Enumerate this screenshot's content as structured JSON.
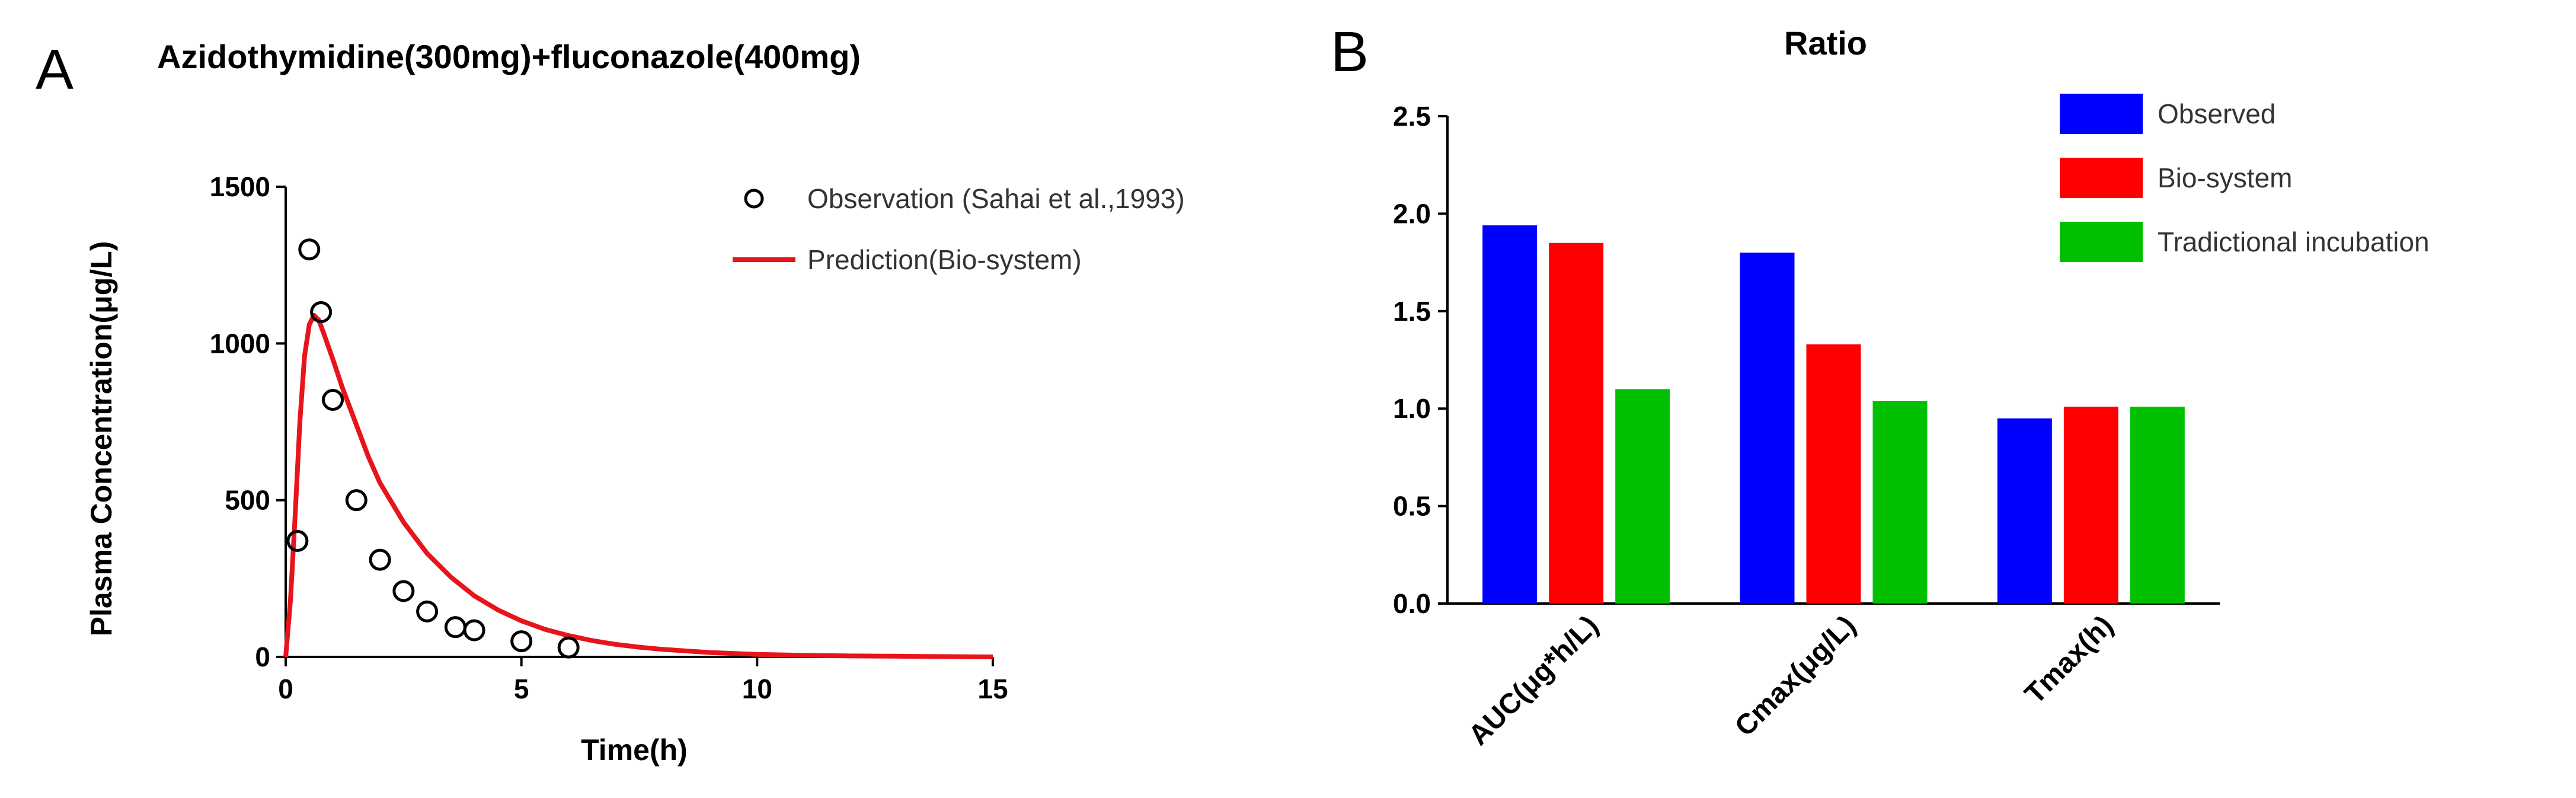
{
  "chart_data": [
    {
      "panel": "A",
      "type": "scatter",
      "title": "Azidothymidine(300mg)+fluconazole(400mg)",
      "xlabel": "Time(h)",
      "ylabel": "Plasma Concentration(μg/L)",
      "xlim": [
        0,
        15
      ],
      "ylim": [
        0,
        1500
      ],
      "xticks": [
        0,
        5,
        10,
        15
      ],
      "yticks": [
        0,
        500,
        1000,
        1500
      ],
      "grid": false,
      "legend_position": "top-right",
      "series": [
        {
          "name": "Observation (Sahai et al.,1993)",
          "kind": "scatter",
          "marker": "open-circle",
          "color": "#000000",
          "x": [
            0.25,
            0.5,
            0.75,
            1.0,
            1.5,
            2.0,
            2.5,
            3.0,
            3.6,
            4.0,
            5.0,
            6.0
          ],
          "y": [
            370,
            1300,
            1100,
            820,
            500,
            310,
            210,
            145,
            95,
            85,
            50,
            30
          ]
        },
        {
          "name": "Prediction(Bio-system)",
          "kind": "line",
          "color": "#e8141b",
          "x": [
            0,
            0.1,
            0.2,
            0.3,
            0.4,
            0.5,
            0.6,
            0.7,
            0.8,
            1.0,
            1.2,
            1.5,
            1.75,
            2.0,
            2.5,
            3.0,
            3.5,
            4.0,
            4.5,
            5.0,
            5.5,
            6.0,
            6.5,
            7.0,
            7.5,
            8.0,
            9.0,
            10.0,
            11.0,
            12.0,
            13.0,
            14.0,
            15.0
          ],
          "y": [
            0,
            180,
            450,
            750,
            960,
            1060,
            1090,
            1075,
            1035,
            950,
            860,
            740,
            640,
            555,
            430,
            330,
            255,
            195,
            150,
            115,
            88,
            68,
            52,
            40,
            31,
            24,
            14,
            8,
            5,
            3,
            2,
            1,
            0
          ]
        }
      ]
    },
    {
      "panel": "B",
      "type": "bar",
      "title": "Ratio",
      "xlabel": "",
      "ylabel": "",
      "ylim": [
        0,
        2.5
      ],
      "yticks": [
        "0.0",
        "0.5",
        "1.0",
        "1.5",
        "2.0",
        "2.5"
      ],
      "grid": false,
      "legend_position": "top-right",
      "categories": [
        "AUC(μg*h/L)",
        "Cmax(μg/L)",
        "Tmax(h)"
      ],
      "series": [
        {
          "name": "Observed",
          "color": "#0000ff",
          "values": [
            1.94,
            1.8,
            0.95
          ]
        },
        {
          "name": "Bio-system",
          "color": "#ff0000",
          "values": [
            1.85,
            1.33,
            1.01
          ]
        },
        {
          "name": "Tradictional incubation",
          "color": "#00c000",
          "values": [
            1.1,
            1.04,
            1.01
          ]
        }
      ]
    }
  ]
}
